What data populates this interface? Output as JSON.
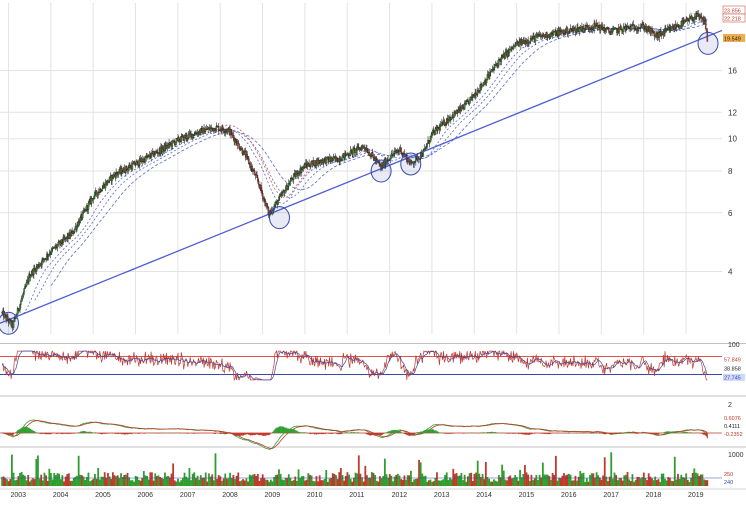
{
  "chart_data": {
    "type": "candlestick",
    "log_scale": true,
    "grid": true,
    "colors": {
      "up": "#2f9e2f",
      "down": "#c0392b",
      "trendline": "#4f5fd6",
      "circle": "#3949ab",
      "ma": "#5c6bc0",
      "ma_red": "#d9534f",
      "grid": "#e3e3e3",
      "rsi_overbought": "#d9534f",
      "rsi_oversold": "#3949ab",
      "badge_last": "#f0ad4e"
    },
    "x_ticks": [
      "2003",
      "2004",
      "2005",
      "2006",
      "2007",
      "2008",
      "2009",
      "2010",
      "2011",
      "2012",
      "2013",
      "2014",
      "2015",
      "2016",
      "2017",
      "2018",
      "2019"
    ],
    "price_axis": {
      "ylim": [
        2.6,
        25.5
      ],
      "ticks": [
        4,
        6,
        8,
        10,
        12,
        16
      ],
      "tick_labels": [
        "4",
        "6",
        "8",
        "10",
        "12",
        "16"
      ],
      "badges": [
        "23.656",
        "22.218",
        "19.549"
      ],
      "last_price": 19.549
    },
    "anchors": [
      [
        2002.85,
        3.0
      ],
      [
        2003.1,
        2.75
      ],
      [
        2003.5,
        3.9
      ],
      [
        2004.0,
        4.6
      ],
      [
        2004.5,
        5.2
      ],
      [
        2005.0,
        6.7
      ],
      [
        2005.5,
        7.8
      ],
      [
        2006.0,
        8.4
      ],
      [
        2006.5,
        9.1
      ],
      [
        2007.0,
        9.9
      ],
      [
        2007.5,
        10.5
      ],
      [
        2007.9,
        10.8
      ],
      [
        2008.2,
        10.6
      ],
      [
        2008.6,
        8.9
      ],
      [
        2008.9,
        7.4
      ],
      [
        2009.15,
        5.95
      ],
      [
        2009.4,
        6.6
      ],
      [
        2009.7,
        7.6
      ],
      [
        2010.0,
        8.3
      ],
      [
        2010.4,
        8.6
      ],
      [
        2010.8,
        8.7
      ],
      [
        2011.0,
        9.0
      ],
      [
        2011.4,
        9.5
      ],
      [
        2011.8,
        8.2
      ],
      [
        2012.0,
        8.8
      ],
      [
        2012.25,
        9.3
      ],
      [
        2012.5,
        8.4
      ],
      [
        2012.8,
        9.1
      ],
      [
        2013.0,
        10.3
      ],
      [
        2013.4,
        11.5
      ],
      [
        2013.8,
        12.6
      ],
      [
        2014.2,
        14.6
      ],
      [
        2014.6,
        17.2
      ],
      [
        2015.0,
        19.2
      ],
      [
        2015.5,
        20.2
      ],
      [
        2016.0,
        20.8
      ],
      [
        2016.5,
        21.4
      ],
      [
        2016.9,
        21.8
      ],
      [
        2017.2,
        20.9
      ],
      [
        2017.6,
        21.5
      ],
      [
        2018.0,
        21.7
      ],
      [
        2018.3,
        20.3
      ],
      [
        2018.6,
        21.2
      ],
      [
        2019.0,
        22.4
      ],
      [
        2019.25,
        23.3
      ],
      [
        2019.45,
        22.4
      ],
      [
        2019.52,
        19.55
      ]
    ],
    "trendline": [
      [
        2002.8,
        2.8
      ],
      [
        2019.85,
        21.1
      ]
    ],
    "circled_lows": [
      {
        "date": 2003.0,
        "price": 2.8
      },
      {
        "date": 2009.4,
        "price": 5.8
      },
      {
        "date": 2011.8,
        "price": 8.0
      },
      {
        "date": 2012.5,
        "price": 8.4
      },
      {
        "date": 2019.52,
        "price": 19.3
      }
    ],
    "rsi": {
      "ylim": [
        0,
        100
      ],
      "tick_labels": [
        "100"
      ],
      "overbought": 70,
      "oversold": 30,
      "badges": [
        "57.849",
        "38.858",
        "27.745"
      ]
    },
    "macd": {
      "tick_labels": [
        "2"
      ],
      "badges": [
        "0.6076",
        "0.4111",
        "-0.2352"
      ]
    },
    "volume": {
      "tick_labels": [
        "1000"
      ],
      "badges": [
        "250",
        "240"
      ]
    }
  }
}
